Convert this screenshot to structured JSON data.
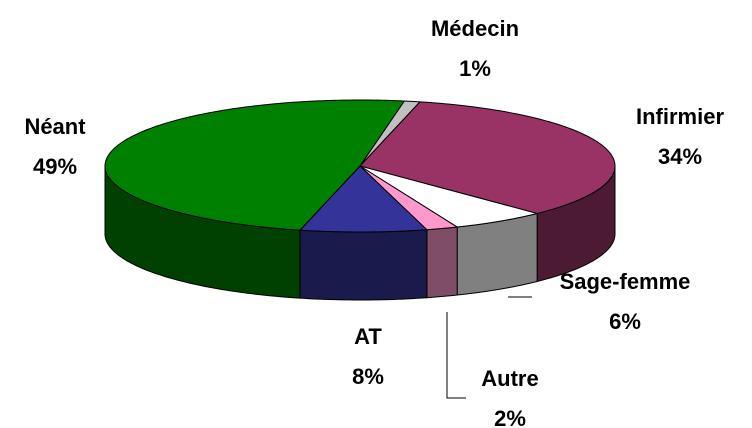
{
  "chart_data": {
    "type": "pie3d",
    "categories": [
      "Médecin",
      "Infirmier",
      "Sage-femme",
      "Autre",
      "AT",
      "Néant"
    ],
    "values": [
      1,
      34,
      6,
      2,
      8,
      49
    ],
    "value_labels": [
      "1%",
      "34%",
      "6%",
      "2%",
      "8%",
      "49%"
    ],
    "colors": [
      "#c0c0c0",
      "#993366",
      "#ffffff",
      "#ff99cc",
      "#333399",
      "#008000"
    ]
  }
}
